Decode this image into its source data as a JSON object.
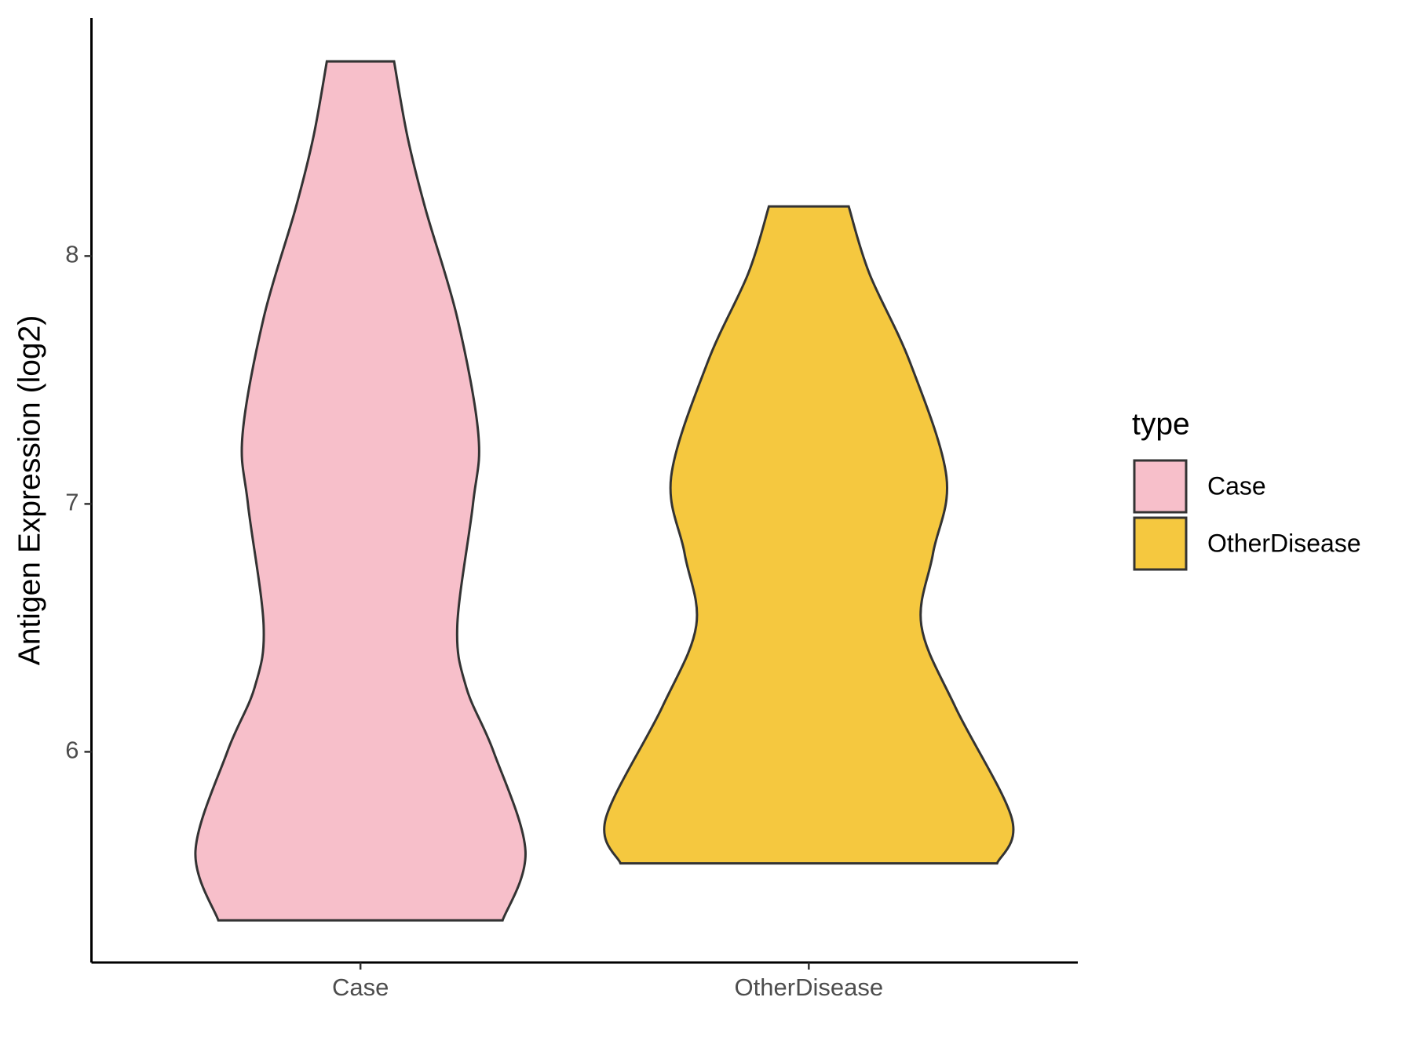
{
  "chart_data": {
    "type": "violin",
    "y_label": "Antigen Expression (log2)",
    "categories": [
      "Case",
      "OtherDisease"
    ],
    "ylim": [
      5.15,
      8.96
    ],
    "yticks": [
      6,
      7,
      8
    ],
    "legend_title": "type",
    "legend_position": "right",
    "series": [
      {
        "name": "Case",
        "color": "#f7bfca",
        "y": [
          5.32,
          5.6,
          6.0,
          6.26,
          6.51,
          7.0,
          7.28,
          7.75,
          8.19,
          8.48,
          8.785
        ],
        "half_widths": [
          0.317,
          0.368,
          0.297,
          0.236,
          0.216,
          0.251,
          0.263,
          0.216,
          0.145,
          0.105,
          0.075
        ]
      },
      {
        "name": "OtherDisease",
        "color": "#f5c83f",
        "y": [
          5.55,
          5.73,
          6.18,
          6.51,
          6.8,
          7.11,
          7.57,
          7.93,
          8.2
        ],
        "half_widths": [
          0.42,
          0.453,
          0.327,
          0.251,
          0.277,
          0.307,
          0.226,
          0.135,
          0.089
        ]
      }
    ]
  }
}
